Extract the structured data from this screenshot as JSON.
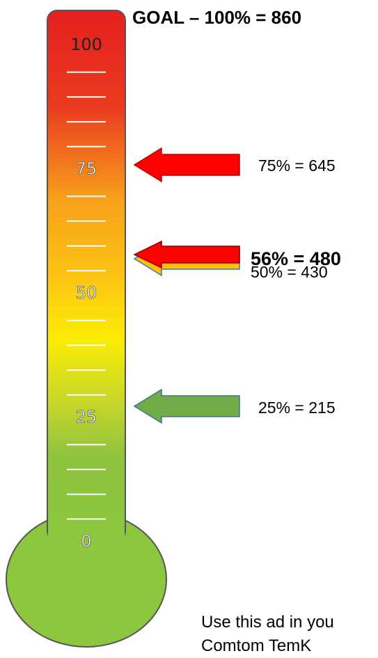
{
  "goal": {
    "label": "GOAL – 100% = 860"
  },
  "thermometer": {
    "scale_labels": [
      "100",
      "75",
      "50",
      "25",
      "0"
    ],
    "colors": {
      "top": "#e42020",
      "upper": "#f7a21a",
      "middle": "#fbec06",
      "lower": "#8fc43f",
      "bulb": "#8dc63f",
      "outline": "#555555"
    }
  },
  "markers": [
    {
      "text": "75% = 645",
      "percent": 75,
      "bold": false,
      "color": "#ff0000"
    },
    {
      "text": "56% = 480",
      "percent": 56,
      "bold": true,
      "color": "#ffc000"
    },
    {
      "text": "50% = 430",
      "percent": 50,
      "bold": false,
      "color": "#ff0000"
    },
    {
      "text": "25% = 215",
      "percent": 25,
      "bold": false,
      "color": "#70ad47"
    }
  ],
  "footer": {
    "lines": [
      "Use this ad in you",
      "Comtom TemK"
    ]
  }
}
